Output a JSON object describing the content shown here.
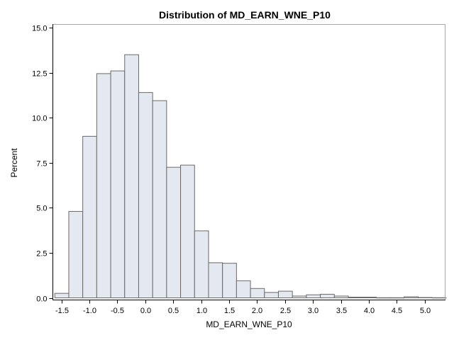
{
  "chart_data": {
    "type": "bar",
    "title": "Distribution of MD_EARN_WNE_P10",
    "xlabel": "MD_EARN_WNE_P10",
    "ylabel": "Percent",
    "xlim": [
      -1.66,
      5.37
    ],
    "ylim": [
      0,
      15.2
    ],
    "bin_width": 0.25,
    "x_ticks": [
      "-1.5",
      "-1.0",
      "-0.5",
      "0.0",
      "0.5",
      "1.0",
      "1.5",
      "2.0",
      "2.5",
      "3.0",
      "3.5",
      "4.0",
      "4.5",
      "5.0"
    ],
    "y_ticks": [
      "0.0",
      "2.5",
      "5.0",
      "7.5",
      "10.0",
      "12.5",
      "15.0"
    ],
    "bins": [
      {
        "center": -1.5,
        "value": 0.25
      },
      {
        "center": -1.25,
        "value": 4.8
      },
      {
        "center": -1.0,
        "value": 8.97
      },
      {
        "center": -0.75,
        "value": 12.45
      },
      {
        "center": -0.5,
        "value": 12.6
      },
      {
        "center": -0.25,
        "value": 13.5
      },
      {
        "center": 0.0,
        "value": 11.4
      },
      {
        "center": 0.25,
        "value": 10.95
      },
      {
        "center": 0.5,
        "value": 7.25
      },
      {
        "center": 0.75,
        "value": 7.37
      },
      {
        "center": 1.0,
        "value": 3.72
      },
      {
        "center": 1.25,
        "value": 1.95
      },
      {
        "center": 1.5,
        "value": 1.92
      },
      {
        "center": 1.75,
        "value": 0.95
      },
      {
        "center": 2.0,
        "value": 0.52
      },
      {
        "center": 2.25,
        "value": 0.3
      },
      {
        "center": 2.5,
        "value": 0.37
      },
      {
        "center": 2.75,
        "value": 0.1
      },
      {
        "center": 3.0,
        "value": 0.17
      },
      {
        "center": 3.25,
        "value": 0.2
      },
      {
        "center": 3.5,
        "value": 0.1
      },
      {
        "center": 3.75,
        "value": 0.04
      },
      {
        "center": 4.0,
        "value": 0.04
      },
      {
        "center": 4.25,
        "value": 0.01
      },
      {
        "center": 4.5,
        "value": 0.01
      },
      {
        "center": 4.75,
        "value": 0.06
      },
      {
        "center": 5.0,
        "value": 0.02
      },
      {
        "center": 5.25,
        "value": 0.01
      }
    ],
    "grid": false,
    "legend": "none",
    "bar_fill": "#e4e8f1",
    "bar_stroke": "#6a6a6a",
    "frame_color": "#a8a8a8"
  }
}
